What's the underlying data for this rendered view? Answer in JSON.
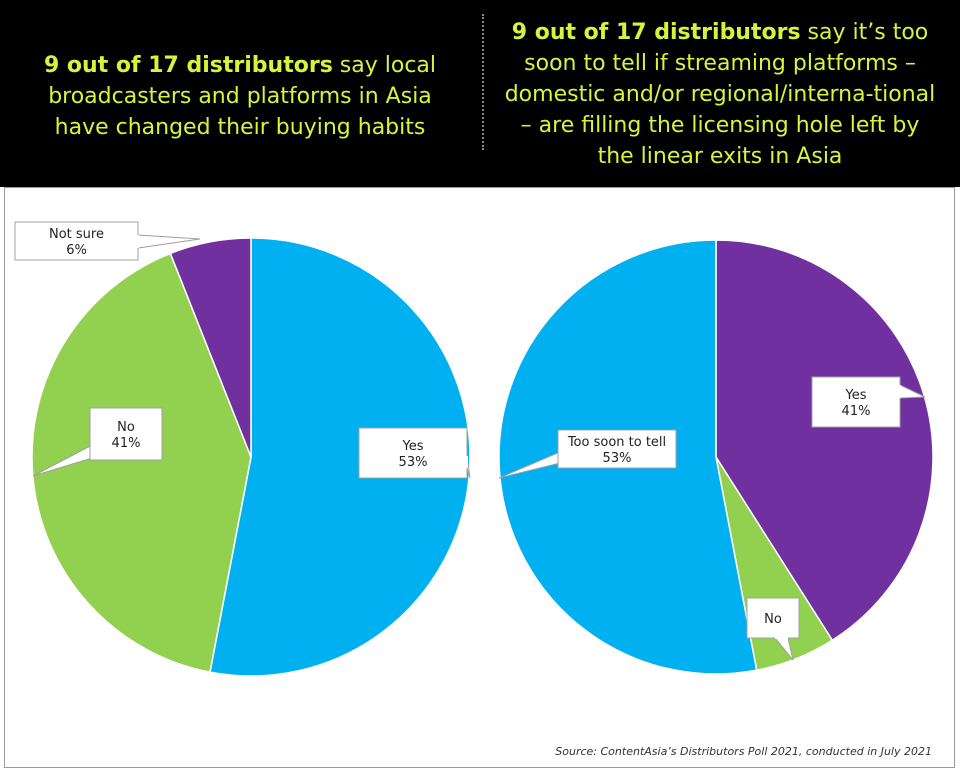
{
  "header": {
    "left": {
      "bold": "9 out of 17 distributors",
      "rest": " say local broadcasters and platforms in Asia have changed their buying habits"
    },
    "right": {
      "bold": "9 out of 17 distributors",
      "rest": " say it’s too soon to tell if streaming platforms – domestic and/or regional/interna-tional – are filling the licensing hole left by the linear exits in Asia"
    }
  },
  "source": "Source: ContentAsia’s Distributors Poll 2021, conducted in July 2021",
  "colors": {
    "blue": "#00b0f0",
    "green": "#92d050",
    "purple": "#7030a0",
    "header_bg": "#000000",
    "headline": "#d4f53c"
  },
  "chart_data": [
    {
      "type": "pie",
      "slices": [
        {
          "label": "Yes",
          "value_label": "53%",
          "value": 53,
          "color": "#00b0f0"
        },
        {
          "label": "No",
          "value_label": "41%",
          "value": 41,
          "color": "#92d050"
        },
        {
          "label": "Not sure",
          "value_label": "6%",
          "value": 6,
          "color": "#7030a0"
        }
      ]
    },
    {
      "type": "pie",
      "slices": [
        {
          "label": "Yes",
          "value_label": "41%",
          "value": 41,
          "color": "#7030a0"
        },
        {
          "label": "No",
          "value_label": "",
          "value": 6,
          "color": "#92d050"
        },
        {
          "label": "Too soon to tell",
          "value_label": "53%",
          "value": 53,
          "color": "#00b0f0"
        }
      ]
    }
  ]
}
